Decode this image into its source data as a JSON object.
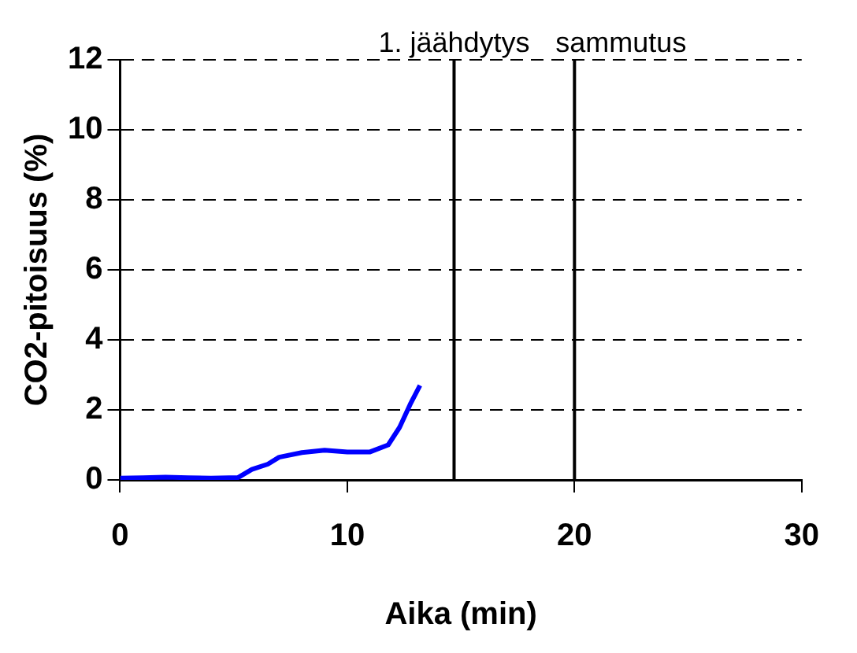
{
  "chart_data": {
    "type": "line",
    "xlabel": "Aika (min)",
    "ylabel": "CO2-pitoisuus (%)",
    "series": [
      {
        "color": "#0000ff",
        "x": [
          0,
          1,
          2,
          3,
          4,
          5.2,
          5.8,
          6.5,
          7,
          8,
          9,
          10,
          11,
          11.8,
          12.3,
          12.8,
          13.2
        ],
        "values": [
          0.05,
          0.06,
          0.08,
          0.06,
          0.05,
          0.07,
          0.3,
          0.45,
          0.65,
          0.78,
          0.85,
          0.8,
          0.8,
          1.0,
          1.5,
          2.2,
          2.7
        ]
      }
    ],
    "xlim": [
      0,
      30
    ],
    "xticks": [
      0,
      10,
      20,
      30
    ],
    "ylim": [
      0,
      12
    ],
    "yticks": [
      0,
      2,
      4,
      6,
      8,
      10,
      12
    ],
    "grid": "y",
    "marker": "none",
    "line_style": "solid",
    "legend": false,
    "ref_lines": [
      {
        "axis": "x",
        "value": 14.7,
        "label": "1. jäähdytys",
        "color": "#000000"
      },
      {
        "axis": "x",
        "value": 20,
        "label": "sammutus",
        "color": "#000000"
      }
    ]
  }
}
